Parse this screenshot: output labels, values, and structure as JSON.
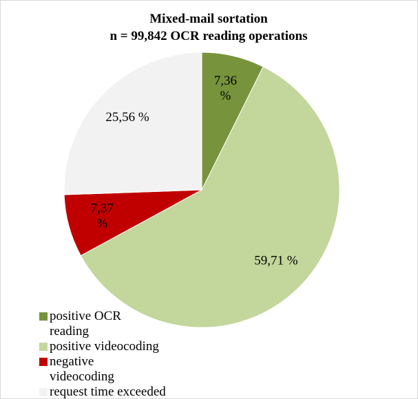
{
  "chart_data": {
    "type": "pie",
    "title": "Mixed-mail sortation",
    "subtitle": "n = 99,842 OCR reading operations",
    "categories": [
      "positive OCR reading",
      "positive videocoding",
      "negative videocoding",
      "request time exceeded"
    ],
    "values": [
      7.36,
      59.71,
      7.37,
      25.56
    ],
    "value_labels": [
      "7,36 %",
      "59,71 %",
      "7,37 %",
      "25,56 %"
    ],
    "colors": [
      "#77933c",
      "#c3d69b",
      "#c00000",
      "#f2f2f2"
    ]
  }
}
